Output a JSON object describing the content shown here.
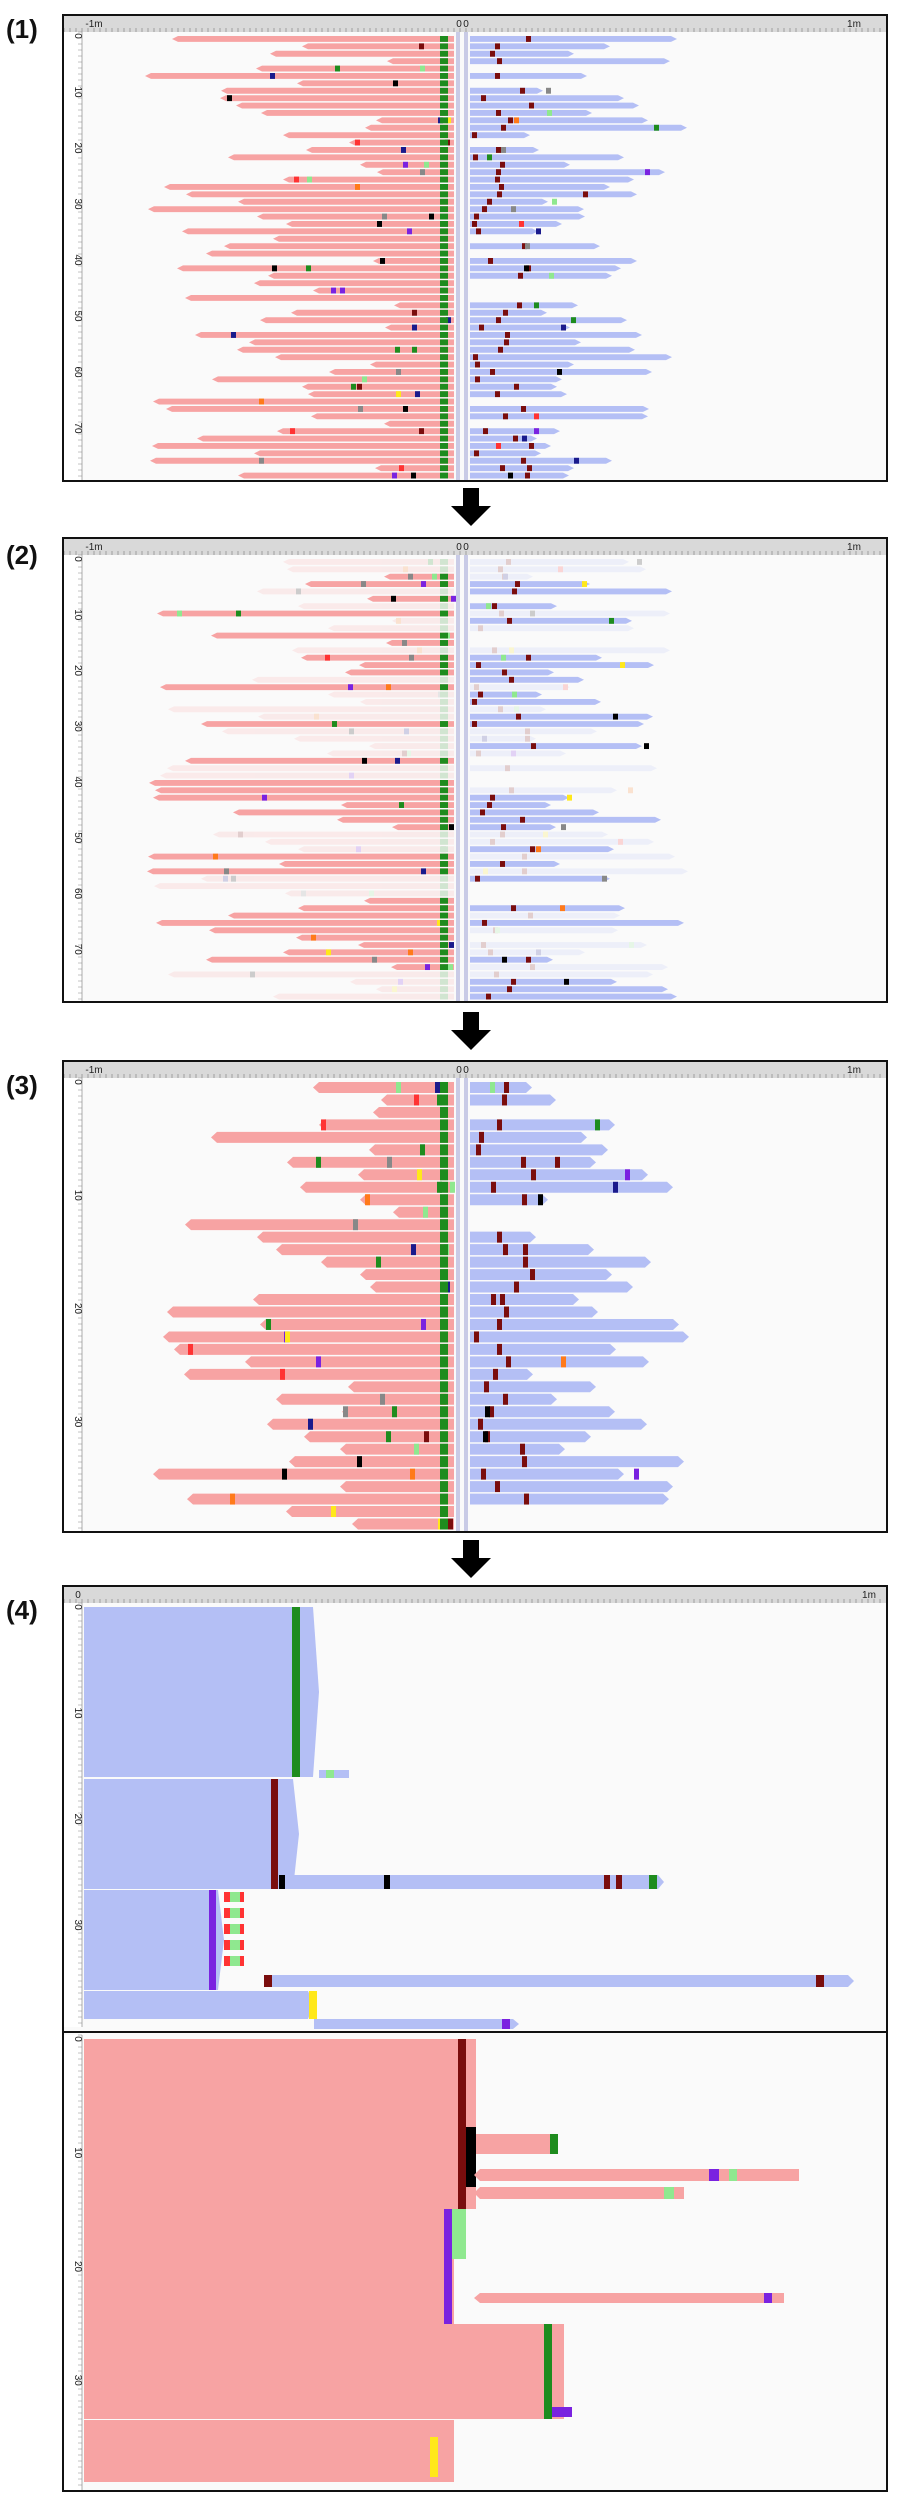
{
  "panels": [
    {
      "label": "(1)",
      "x_ticks": [
        "-1m",
        "0",
        "0",
        "1m"
      ],
      "y_ticks": [
        "0",
        "10",
        "20",
        "30",
        "40",
        "50",
        "60",
        "70"
      ]
    },
    {
      "label": "(2)",
      "x_ticks": [
        "-1m",
        "0",
        "0",
        "1m"
      ],
      "y_ticks": [
        "0",
        "10",
        "20",
        "30",
        "40",
        "50",
        "60",
        "70"
      ]
    },
    {
      "label": "(3)",
      "x_ticks": [
        "-1m",
        "0",
        "0",
        "1m"
      ],
      "y_ticks": [
        "0",
        "10",
        "20",
        "30"
      ]
    },
    {
      "label": "(4)",
      "x_ticks": [
        "0",
        "1m"
      ],
      "y_ticks_top": [
        "0",
        "10",
        "20",
        "30"
      ],
      "y_ticks_bottom": [
        "0",
        "10",
        "20",
        "30"
      ]
    }
  ],
  "colors": {
    "red_fill": "#f7a3a3",
    "blue_fill": "#b4bff5",
    "event_colors": [
      "#1e8c1e",
      "#7a0d0d",
      "#000000",
      "#7a22e0",
      "#8fe88f",
      "#ff3333",
      "#ffe81a",
      "#ff7a1a",
      "#888888",
      "#1a1a8c"
    ],
    "ruler": "#d9d9d9",
    "border": "#111111"
  }
}
